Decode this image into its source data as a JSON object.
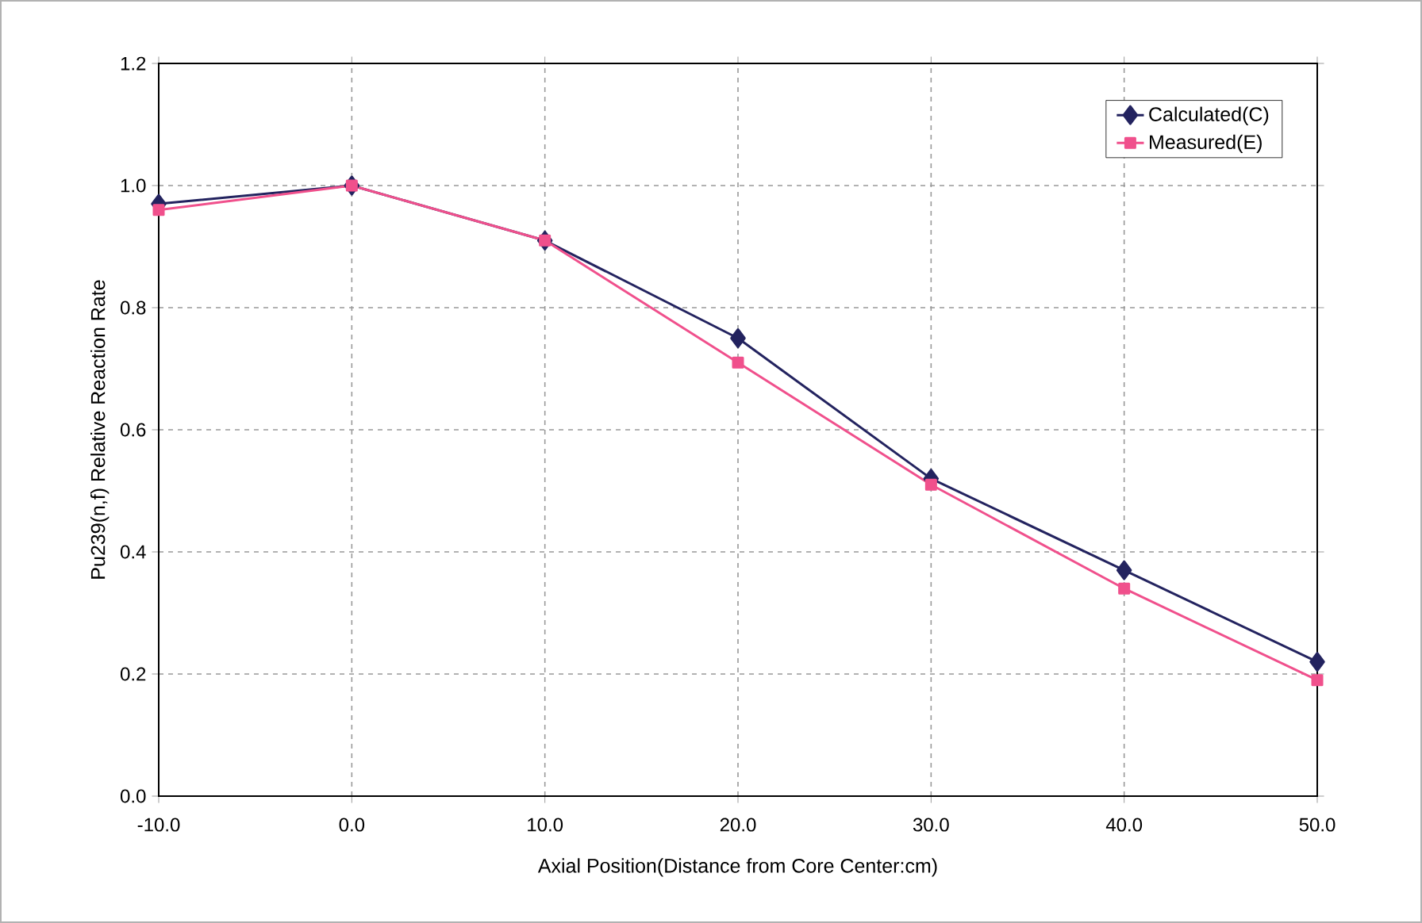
{
  "chart_data": {
    "type": "line",
    "xlabel": "Axial Position(Distance from Core Center:cm)",
    "ylabel": "Pu239(n,f) Relative Reaction Rate",
    "x": [
      -10,
      0,
      10,
      20,
      30,
      40,
      50
    ],
    "series": [
      {
        "name": "Calculated(C)",
        "color": "#23235f",
        "marker": "diamond",
        "values": [
          0.97,
          1.0,
          0.91,
          0.75,
          0.52,
          0.37,
          0.22
        ]
      },
      {
        "name": "Measured(E)",
        "color": "#f0508c",
        "marker": "square",
        "values": [
          0.96,
          1.0,
          0.91,
          0.71,
          0.51,
          0.34,
          0.19
        ]
      }
    ],
    "xlim": [
      -10,
      50
    ],
    "ylim": [
      0,
      1.2
    ],
    "xticks": [
      {
        "value": -10,
        "label": "-10.0"
      },
      {
        "value": 0,
        "label": "0.0"
      },
      {
        "value": 10,
        "label": "10.0"
      },
      {
        "value": 20,
        "label": "20.0"
      },
      {
        "value": 30,
        "label": "30.0"
      },
      {
        "value": 40,
        "label": "40.0"
      },
      {
        "value": 50,
        "label": "50.0"
      }
    ],
    "yticks": [
      {
        "value": 0,
        "label": "0.0"
      },
      {
        "value": 0.2,
        "label": "0.2"
      },
      {
        "value": 0.4,
        "label": "0.4"
      },
      {
        "value": 0.6,
        "label": "0.6"
      },
      {
        "value": 0.8,
        "label": "0.8"
      },
      {
        "value": 1.0,
        "label": "1.0"
      },
      {
        "value": 1.2,
        "label": "1.2"
      }
    ],
    "grid": true,
    "legend": "top right",
    "line_style": "solid"
  }
}
